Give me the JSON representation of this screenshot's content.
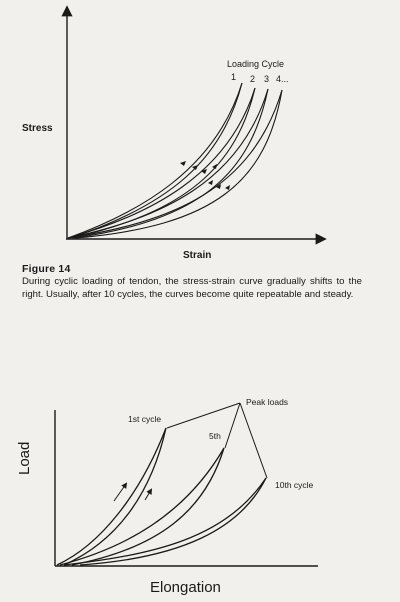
{
  "figure_top": {
    "xlabel": "Strain",
    "ylabel": "Stress",
    "legend_title": "Loading Cycle",
    "cycle_labels": [
      "1",
      "2",
      "3",
      "4..."
    ]
  },
  "caption": {
    "title": "Figure 14",
    "text": "During cyclic loading of tendon, the stress-strain curve gradually shifts to the right. Usually, after 10 cycles, the curves become quite repeatable and steady."
  },
  "figure_bottom": {
    "xlabel": "Elongation",
    "ylabel": "Load",
    "peak_label": "Peak loads",
    "cycle_labels": [
      "1st cycle",
      "5th",
      "10th cycle"
    ]
  }
}
